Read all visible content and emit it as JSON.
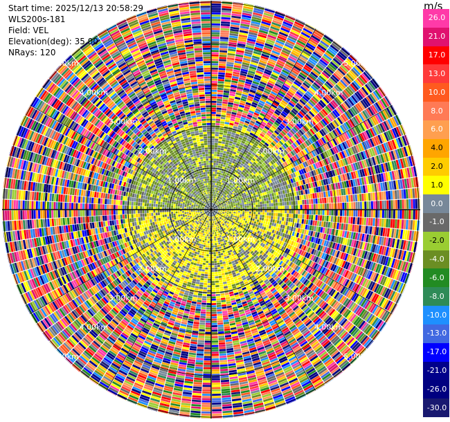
{
  "header": {
    "start_time": "Start time: 2025/12/13 20:58:29",
    "station": "WLS200s-181",
    "field": "Field: VEL",
    "elevation": "Elevation(deg): 35.00",
    "nrays": "NRays: 120"
  },
  "colorbar": {
    "unit": "m/s",
    "ticks": [
      "26.0",
      "21.0",
      "17.0",
      "13.0",
      "10.0",
      "8.0",
      "6.0",
      "4.0",
      "2.0",
      "1.0",
      "0.0",
      "-1.0",
      "-2.0",
      "-4.0",
      "-6.0",
      "-8.0",
      "-10.0",
      "-13.0",
      "-17.0",
      "-21.0",
      "-26.0",
      "-30.0"
    ],
    "colors": [
      "#ff3aa8",
      "#e0126f",
      "#ff0000",
      "#ff3a3a",
      "#ff5a1f",
      "#ff7a55",
      "#ff9f4f",
      "#ffa500",
      "#ffcc00",
      "#ffff00",
      "#778899",
      "#696969",
      "#9acd32",
      "#6b8e23",
      "#228b22",
      "#2e8b57",
      "#1e90ff",
      "#4169e1",
      "#0000ff",
      "#00008b",
      "#000080",
      "#191970"
    ]
  },
  "chart_data": {
    "type": "heatmap",
    "title": "",
    "field": "VEL",
    "unit": "m/s",
    "nrays": 120,
    "elevation_deg": 35.0,
    "range_rings": [
      {
        "label": "1.00km"
      },
      {
        "label": "2.00km"
      },
      {
        "label": "3.00km"
      },
      {
        "label": "4.00km"
      },
      {
        "label": "5.00km"
      }
    ],
    "ring_labels": [
      "1.00km",
      "2.00km",
      "3.00km",
      "4.00km",
      "5.00km",
      "1.00km",
      "2.00km",
      "3.00km",
      "4.00km",
      "5.00km",
      "1.00km",
      "2.00km",
      "3.00km",
      "4.00km",
      "5.00km",
      "1.00km",
      "2.00km",
      "3.00km",
      "4.00km",
      "5.00km"
    ],
    "inner_region": "velocities mostly between -2.0 and 4.0 m/s (olive-green and grey on upper side, yellow on lower-left)",
    "outer_region": "noisy values spanning full -30.0 to 26.0 m/s range"
  }
}
